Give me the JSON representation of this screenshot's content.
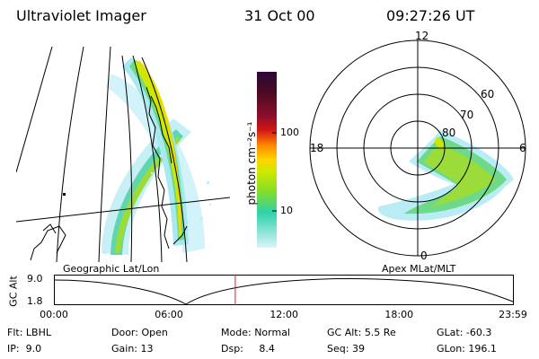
{
  "header": {
    "title": "Ultraviolet Imager",
    "date": "31 Oct 00",
    "time": "09:27:26 UT"
  },
  "colorbar": {
    "label": "photon cm⁻²s⁻¹",
    "ticks": [
      "100",
      "10"
    ],
    "colors": [
      "#2b0838",
      "#4a0b22",
      "#8a0f2b",
      "#d21414",
      "#ff8a00",
      "#ffd400",
      "#cde800",
      "#84dc2a",
      "#2fd2a8",
      "#d9f3fb"
    ]
  },
  "polar": {
    "mlt_labels": {
      "top": "12",
      "left": "18",
      "right": "6",
      "bottom": "0"
    },
    "lat_labels": [
      "60",
      "70",
      "80"
    ]
  },
  "map_labels": {
    "left": "Geographic Lat/Lon",
    "right": "Apex MLat/MLT"
  },
  "timeline": {
    "y_axis_label": "GC Alt",
    "y_ticks": [
      "9.0",
      "1.8"
    ],
    "x_ticks": [
      "00:00",
      "06:00",
      "12:00",
      "18:00",
      "23:59"
    ],
    "x_hours": [
      0,
      6,
      12,
      18,
      23.983
    ],
    "current_hour": 9.457,
    "marker_color": "#d42020"
  },
  "footer": {
    "flt_label": "Flt:",
    "flt_value": "LBHL",
    "ip_label": "IP:",
    "ip_value": "9.0",
    "door_label": "Door:",
    "door_value": "Open",
    "gain_label": "Gain:",
    "gain_value": "13",
    "mode_label": "Mode:",
    "mode_value": "Normal",
    "dsp_label": "Dsp:",
    "dsp_value": "8.4",
    "gcalt_label": "GC Alt:",
    "gcalt_value": "5.5 Re",
    "seq_label": "Seq:",
    "seq_value": "39",
    "glat_label": "GLat:",
    "glat_value": "-60.3",
    "glon_label": "GLon:",
    "glon_value": "196.1"
  }
}
